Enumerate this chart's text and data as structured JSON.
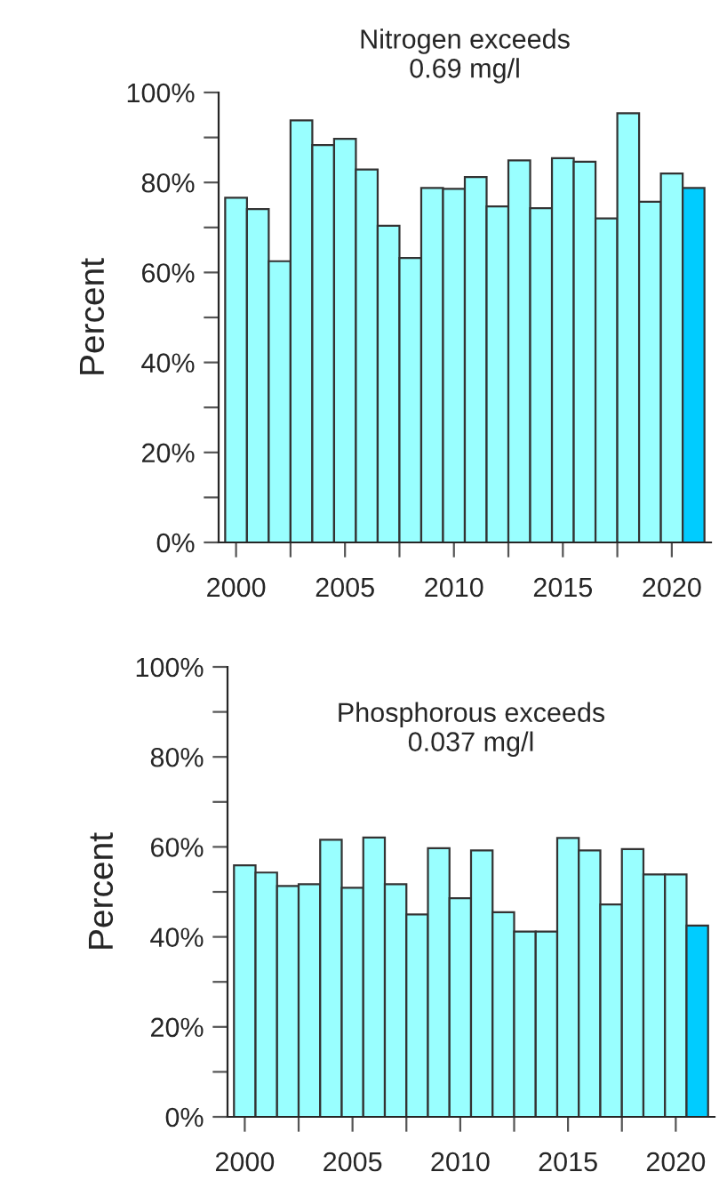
{
  "chart_data": [
    {
      "type": "bar",
      "title": "Nitrogen exceeds\n0.69 mg/l",
      "ylabel": "Percent",
      "x": [
        2000,
        2001,
        2002,
        2003,
        2004,
        2005,
        2006,
        2007,
        2008,
        2009,
        2010,
        2011,
        2012,
        2013,
        2014,
        2015,
        2016,
        2017,
        2018,
        2019,
        2020,
        2021
      ],
      "values": [
        76.6,
        74.1,
        62.5,
        93.8,
        88.3,
        89.7,
        82.9,
        70.4,
        63.2,
        78.8,
        78.6,
        81.2,
        74.7,
        84.9,
        74.3,
        85.4,
        84.6,
        72.0,
        95.4,
        75.7,
        82.0,
        78.8
      ],
      "colors": [
        "#99ffff",
        "#99ffff",
        "#99ffff",
        "#99ffff",
        "#99ffff",
        "#99ffff",
        "#99ffff",
        "#99ffff",
        "#99ffff",
        "#99ffff",
        "#99ffff",
        "#99ffff",
        "#99ffff",
        "#99ffff",
        "#99ffff",
        "#99ffff",
        "#99ffff",
        "#99ffff",
        "#99ffff",
        "#99ffff",
        "#99ffff",
        "#00ccff"
      ],
      "xlim": [
        1999.2,
        2021.8
      ],
      "xticks": [
        2000,
        {
          "value": 2002.5,
          "label": null
        },
        2005,
        {
          "value": 2007.5,
          "label": null
        },
        2010,
        {
          "value": 2012.5,
          "label": null
        },
        2015,
        {
          "value": 2017.5,
          "label": null
        },
        2020
      ],
      "ylim": [
        0,
        100
      ],
      "yticks": [
        {
          "value": 0,
          "label": "0%"
        },
        {
          "value": 10,
          "label": null
        },
        {
          "value": 20,
          "label": "20%"
        },
        {
          "value": 30,
          "label": null
        },
        {
          "value": 40,
          "label": "40%"
        },
        {
          "value": 50,
          "label": null
        },
        {
          "value": 60,
          "label": "60%"
        },
        {
          "value": 70,
          "label": null
        },
        {
          "value": 80,
          "label": "80%"
        },
        {
          "value": 90,
          "label": null
        },
        {
          "value": 100,
          "label": "100%"
        }
      ],
      "grid": false,
      "legend": false
    },
    {
      "type": "bar",
      "title": "Phosphorous exceeds\n0.037 mg/l",
      "ylabel": "Percent",
      "x": [
        2000,
        2001,
        2002,
        2003,
        2004,
        2005,
        2006,
        2007,
        2008,
        2009,
        2010,
        2011,
        2012,
        2013,
        2014,
        2015,
        2016,
        2017,
        2018,
        2019,
        2020,
        2021
      ],
      "values": [
        55.9,
        54.3,
        51.3,
        51.7,
        61.6,
        50.9,
        62.1,
        51.7,
        45.0,
        59.7,
        48.6,
        59.2,
        45.5,
        41.2,
        41.2,
        62.0,
        59.2,
        47.2,
        59.5,
        53.9,
        53.9,
        42.5
      ],
      "colors": [
        "#99ffff",
        "#99ffff",
        "#99ffff",
        "#99ffff",
        "#99ffff",
        "#99ffff",
        "#99ffff",
        "#99ffff",
        "#99ffff",
        "#99ffff",
        "#99ffff",
        "#99ffff",
        "#99ffff",
        "#99ffff",
        "#99ffff",
        "#99ffff",
        "#99ffff",
        "#99ffff",
        "#99ffff",
        "#99ffff",
        "#99ffff",
        "#00ccff"
      ],
      "xlim": [
        1999.2,
        2021.8
      ],
      "xticks": [
        2000,
        {
          "value": 2002.5,
          "label": null
        },
        2005,
        {
          "value": 2007.5,
          "label": null
        },
        2010,
        {
          "value": 2012.5,
          "label": null
        },
        2015,
        {
          "value": 2017.5,
          "label": null
        },
        2020
      ],
      "ylim": [
        0,
        100
      ],
      "yticks": [
        {
          "value": 0,
          "label": "0%"
        },
        {
          "value": 10,
          "label": null
        },
        {
          "value": 20,
          "label": "20%"
        },
        {
          "value": 30,
          "label": null
        },
        {
          "value": 40,
          "label": "40%"
        },
        {
          "value": 50,
          "label": null
        },
        {
          "value": 60,
          "label": "60%"
        },
        {
          "value": 70,
          "label": null
        },
        {
          "value": 80,
          "label": "80%"
        },
        {
          "value": 90,
          "label": null
        },
        {
          "value": 100,
          "label": "100%"
        }
      ],
      "grid": false,
      "legend": false
    }
  ]
}
